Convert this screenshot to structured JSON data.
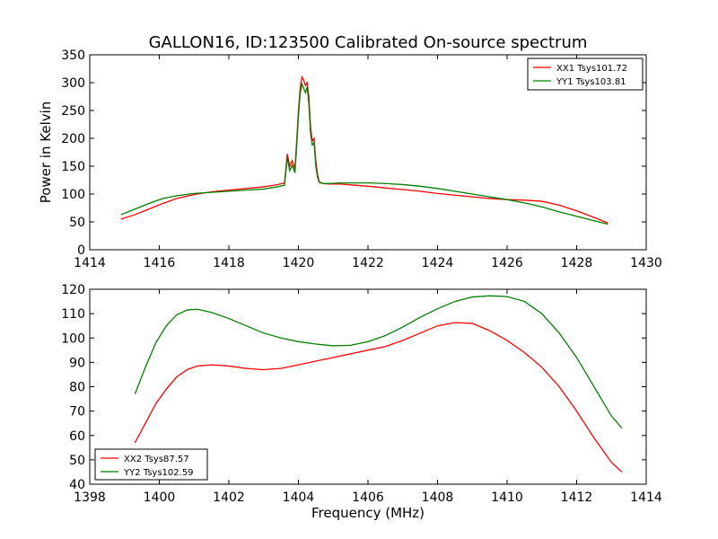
{
  "chart_data": [
    {
      "type": "line",
      "title": "GALLON16, ID:123500 Calibrated On-source spectrum",
      "xlabel": "",
      "ylabel": "Power in Kelvin",
      "xlim": [
        1414,
        1430
      ],
      "ylim": [
        0,
        350
      ],
      "xticks": [
        1414,
        1416,
        1418,
        1420,
        1422,
        1424,
        1426,
        1428,
        1430
      ],
      "yticks": [
        0,
        50,
        100,
        150,
        200,
        250,
        300,
        350
      ],
      "grid": false,
      "legend_position": "top-right",
      "series": [
        {
          "name": "XX1 Tsys101.72",
          "color": "#ff0000",
          "x": [
            1414.9,
            1415.3,
            1415.7,
            1416.1,
            1416.5,
            1417.0,
            1417.5,
            1418.0,
            1418.5,
            1419.0,
            1419.4,
            1419.6,
            1419.68,
            1419.75,
            1419.82,
            1419.9,
            1419.95,
            1420.0,
            1420.05,
            1420.1,
            1420.15,
            1420.2,
            1420.25,
            1420.3,
            1420.35,
            1420.4,
            1420.45,
            1420.5,
            1420.55,
            1420.6,
            1420.7,
            1420.9,
            1421.2,
            1421.6,
            1422.0,
            1422.5,
            1423.0,
            1423.5,
            1424.0,
            1424.5,
            1425.0,
            1425.5,
            1426.0,
            1426.5,
            1427.0,
            1427.5,
            1428.0,
            1428.5,
            1428.9
          ],
          "y": [
            55,
            63,
            73,
            83,
            92,
            99,
            104,
            107,
            110,
            113,
            117,
            120,
            172,
            150,
            160,
            145,
            195,
            250,
            290,
            310,
            305,
            295,
            300,
            275,
            220,
            195,
            200,
            160,
            135,
            122,
            119,
            118,
            118,
            116,
            114,
            111,
            108,
            105,
            101,
            98,
            95,
            92,
            90,
            89,
            87,
            80,
            70,
            58,
            48
          ]
        },
        {
          "name": "YY1 Tsys103.81",
          "color": "#008000",
          "x": [
            1414.9,
            1415.3,
            1415.7,
            1416.1,
            1416.5,
            1417.0,
            1417.5,
            1418.0,
            1418.5,
            1419.0,
            1419.4,
            1419.6,
            1419.68,
            1419.75,
            1419.82,
            1419.9,
            1419.95,
            1420.0,
            1420.05,
            1420.1,
            1420.15,
            1420.2,
            1420.25,
            1420.3,
            1420.35,
            1420.4,
            1420.45,
            1420.5,
            1420.55,
            1420.6,
            1420.7,
            1420.9,
            1421.2,
            1421.6,
            1422.0,
            1422.5,
            1423.0,
            1423.5,
            1424.0,
            1424.5,
            1425.0,
            1425.5,
            1426.0,
            1426.5,
            1427.0,
            1427.5,
            1428.0,
            1428.5,
            1428.9
          ],
          "y": [
            63,
            73,
            83,
            92,
            97,
            101,
            103,
            105,
            107,
            109,
            113,
            116,
            165,
            142,
            152,
            138,
            185,
            240,
            280,
            298,
            290,
            282,
            292,
            262,
            208,
            188,
            192,
            150,
            130,
            121,
            119,
            119,
            120,
            120,
            120,
            119,
            117,
            114,
            110,
            105,
            100,
            95,
            90,
            84,
            77,
            68,
            60,
            52,
            46
          ]
        }
      ]
    },
    {
      "type": "line",
      "title": "",
      "xlabel": "Frequency (MHz)",
      "ylabel": "",
      "xlim": [
        1398,
        1414
      ],
      "ylim": [
        40,
        120
      ],
      "xticks": [
        1398,
        1400,
        1402,
        1404,
        1406,
        1408,
        1410,
        1412,
        1414
      ],
      "yticks": [
        40,
        50,
        60,
        70,
        80,
        90,
        100,
        110,
        120
      ],
      "grid": false,
      "legend_position": "bottom-left",
      "series": [
        {
          "name": "XX2 Tsys87.57",
          "color": "#ff0000",
          "x": [
            1399.3,
            1399.6,
            1399.9,
            1400.2,
            1400.5,
            1400.8,
            1401.1,
            1401.5,
            1402.0,
            1402.5,
            1403.0,
            1403.5,
            1404.0,
            1404.5,
            1405.0,
            1405.5,
            1406.0,
            1406.5,
            1407.0,
            1407.5,
            1408.0,
            1408.5,
            1409.0,
            1409.5,
            1410.0,
            1410.5,
            1411.0,
            1411.5,
            1412.0,
            1412.5,
            1413.0,
            1413.3
          ],
          "y": [
            57,
            65,
            73,
            79,
            84,
            87,
            88.5,
            89,
            88.5,
            87.5,
            87,
            87.5,
            89,
            90.5,
            92,
            93.5,
            95,
            96.5,
            99,
            102,
            105,
            106.3,
            106,
            103,
            99,
            94,
            88,
            80,
            70,
            59,
            49,
            45
          ]
        },
        {
          "name": "YY2 Tsys102.59",
          "color": "#008000",
          "x": [
            1399.3,
            1399.6,
            1399.9,
            1400.2,
            1400.5,
            1400.8,
            1401.1,
            1401.5,
            1402.0,
            1402.5,
            1403.0,
            1403.5,
            1404.0,
            1404.5,
            1405.0,
            1405.5,
            1406.0,
            1406.5,
            1407.0,
            1407.5,
            1408.0,
            1408.5,
            1409.0,
            1409.5,
            1410.0,
            1410.5,
            1411.0,
            1411.5,
            1412.0,
            1412.5,
            1413.0,
            1413.3
          ],
          "y": [
            77,
            88,
            98,
            105,
            109.5,
            111.5,
            111.8,
            110.5,
            108,
            105,
            102,
            100,
            98.5,
            97.5,
            96.8,
            97,
            98.5,
            101,
            104.5,
            108.5,
            112,
            115,
            116.8,
            117.3,
            117,
            115,
            110,
            102,
            92,
            80,
            68,
            63
          ]
        }
      ]
    }
  ]
}
